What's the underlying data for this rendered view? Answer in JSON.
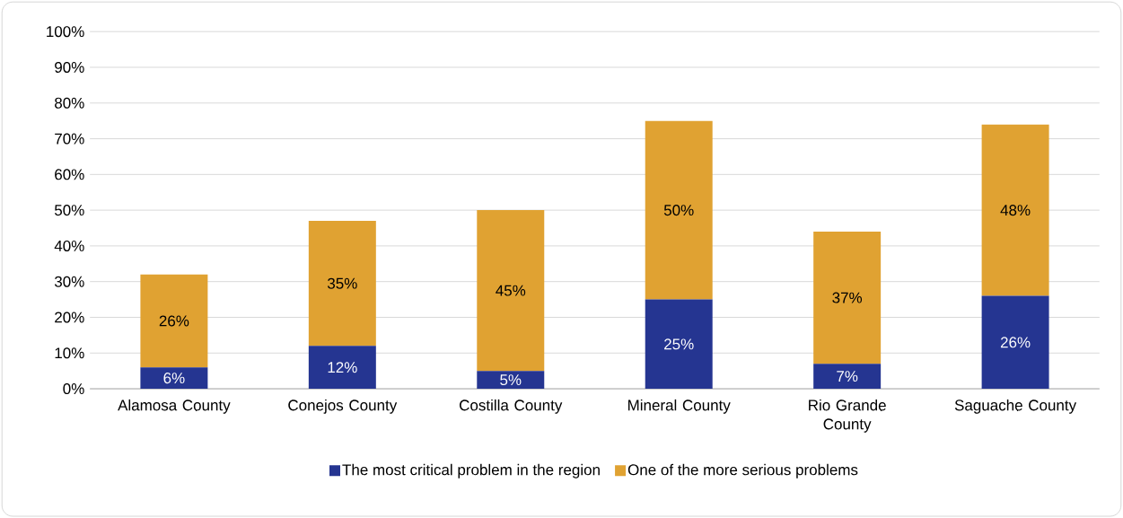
{
  "chart_data": {
    "type": "bar",
    "stacked": true,
    "categories": [
      "Alamosa County",
      "Conejos County",
      "Costilla County",
      "Mineral County",
      "Rio Grande County",
      "Saguache County"
    ],
    "series": [
      {
        "name": "The most critical problem in the region",
        "color": "#253591",
        "values": [
          6,
          12,
          5,
          25,
          7,
          26
        ],
        "value_labels": [
          "6%",
          "12%",
          "5%",
          "25%",
          "7%",
          "26%"
        ]
      },
      {
        "name": "One of the more serious problems",
        "color": "#e0a232",
        "values": [
          26,
          35,
          45,
          50,
          37,
          48
        ],
        "value_labels": [
          "26%",
          "35%",
          "45%",
          "50%",
          "37%",
          "48%"
        ]
      }
    ],
    "ylim": [
      0,
      100
    ],
    "yticks": [
      {
        "value": 0,
        "label": "0%"
      },
      {
        "value": 10,
        "label": "10%"
      },
      {
        "value": 20,
        "label": "20%"
      },
      {
        "value": 30,
        "label": "30%"
      },
      {
        "value": 40,
        "label": "40%"
      },
      {
        "value": 50,
        "label": "50%"
      },
      {
        "value": 60,
        "label": "60%"
      },
      {
        "value": 70,
        "label": "70%"
      },
      {
        "value": 80,
        "label": "80%"
      },
      {
        "value": 90,
        "label": "90%"
      },
      {
        "value": 100,
        "label": "100%"
      }
    ],
    "grid": "y",
    "legend": "bottom"
  }
}
